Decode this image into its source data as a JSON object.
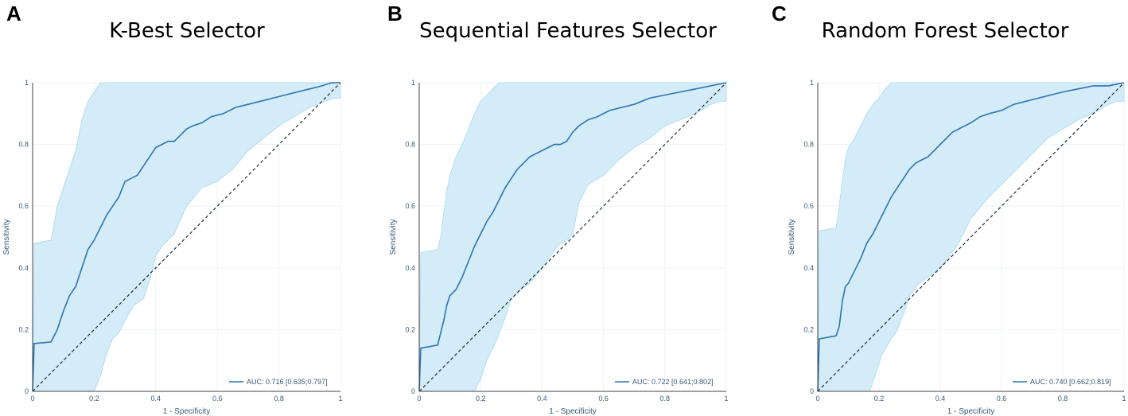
{
  "panels": [
    {
      "letter": "A",
      "title": "K-Best Selector"
    },
    {
      "letter": "B",
      "title": "Sequential Features Selector"
    },
    {
      "letter": "C",
      "title": "Random Forest Selector"
    }
  ],
  "colors": {
    "line": "#2d74b0",
    "band": "#d3ecf8",
    "band_edge": "#a9d8f0",
    "diag": "#1a2b3c",
    "text": "#3a5a7a",
    "grid": "#eef3f6"
  },
  "chart_data": [
    {
      "type": "line",
      "title": "K-Best Selector",
      "xlabel": "1 - Specificity",
      "ylabel": "Sensitivity",
      "xlim": [
        0,
        1
      ],
      "ylim": [
        0,
        1
      ],
      "xticks": [
        "0",
        "0.2",
        "0.4",
        "0.6",
        "0.8",
        "1"
      ],
      "yticks": [
        "0",
        "0.2",
        "0.4",
        "0.6",
        "0.8",
        "1"
      ],
      "legend": "bottom-right",
      "series": [
        {
          "name": "AUC: 0.716 [0.635;0.797]",
          "role": "roc",
          "x": [
            0,
            0.005,
            0.06,
            0.08,
            0.1,
            0.12,
            0.14,
            0.16,
            0.18,
            0.2,
            0.22,
            0.24,
            0.26,
            0.28,
            0.3,
            0.32,
            0.34,
            0.36,
            0.38,
            0.4,
            0.42,
            0.44,
            0.46,
            0.48,
            0.5,
            0.52,
            0.55,
            0.58,
            0.62,
            0.66,
            0.7,
            0.74,
            0.78,
            0.82,
            0.86,
            0.9,
            0.94,
            0.97,
            1
          ],
          "y": [
            0,
            0.155,
            0.16,
            0.2,
            0.26,
            0.31,
            0.34,
            0.4,
            0.46,
            0.49,
            0.53,
            0.57,
            0.6,
            0.63,
            0.68,
            0.69,
            0.7,
            0.73,
            0.76,
            0.79,
            0.8,
            0.81,
            0.81,
            0.83,
            0.85,
            0.86,
            0.87,
            0.89,
            0.9,
            0.92,
            0.93,
            0.94,
            0.95,
            0.96,
            0.97,
            0.98,
            0.99,
            1.0,
            1.0
          ]
        },
        {
          "role": "upper",
          "x": [
            0,
            0.005,
            0.06,
            0.08,
            0.1,
            0.12,
            0.14,
            0.16,
            0.18,
            0.2,
            0.22,
            0.24,
            0.26,
            0.28,
            0.3,
            0.35,
            1
          ],
          "y": [
            0,
            0.48,
            0.49,
            0.6,
            0.66,
            0.72,
            0.78,
            0.88,
            0.94,
            0.97,
            1.0,
            1.0,
            1.0,
            1.0,
            1.0,
            1.0,
            1.0
          ]
        },
        {
          "role": "lower",
          "x": [
            0,
            0.2,
            0.22,
            0.24,
            0.26,
            0.28,
            0.3,
            0.33,
            0.36,
            0.38,
            0.4,
            0.42,
            0.44,
            0.46,
            0.5,
            0.55,
            0.6,
            0.65,
            0.7,
            0.75,
            0.8,
            0.85,
            0.9,
            0.95,
            0.98,
            1
          ],
          "y": [
            0,
            0,
            0.05,
            0.12,
            0.17,
            0.19,
            0.23,
            0.28,
            0.3,
            0.36,
            0.44,
            0.47,
            0.49,
            0.51,
            0.6,
            0.66,
            0.68,
            0.72,
            0.78,
            0.82,
            0.86,
            0.89,
            0.92,
            0.94,
            0.95,
            0.95
          ]
        },
        {
          "role": "chance",
          "x": [
            0,
            1
          ],
          "y": [
            0,
            1
          ]
        }
      ]
    },
    {
      "type": "line",
      "title": "Sequential Features Selector",
      "xlabel": "1 - Specificity",
      "ylabel": "Sensitivity",
      "xlim": [
        0,
        1
      ],
      "ylim": [
        0,
        1
      ],
      "xticks": [
        "0",
        "0.2",
        "0.4",
        "0.6",
        "0.8",
        "1"
      ],
      "yticks": [
        "0",
        "0.2",
        "0.4",
        "0.6",
        "0.8",
        "1"
      ],
      "legend": "bottom-right",
      "series": [
        {
          "name": "AUC: 0.722 [0.641;0.802]",
          "role": "roc",
          "x": [
            0,
            0.005,
            0.06,
            0.08,
            0.09,
            0.1,
            0.12,
            0.14,
            0.16,
            0.18,
            0.2,
            0.22,
            0.24,
            0.26,
            0.28,
            0.3,
            0.32,
            0.34,
            0.36,
            0.38,
            0.4,
            0.42,
            0.44,
            0.46,
            0.48,
            0.5,
            0.52,
            0.55,
            0.58,
            0.62,
            0.66,
            0.7,
            0.75,
            0.8,
            0.85,
            0.9,
            0.95,
            1
          ],
          "y": [
            0,
            0.14,
            0.15,
            0.23,
            0.28,
            0.31,
            0.33,
            0.37,
            0.42,
            0.47,
            0.51,
            0.55,
            0.58,
            0.62,
            0.66,
            0.69,
            0.72,
            0.74,
            0.76,
            0.77,
            0.78,
            0.79,
            0.8,
            0.8,
            0.81,
            0.84,
            0.86,
            0.88,
            0.89,
            0.91,
            0.92,
            0.93,
            0.95,
            0.96,
            0.97,
            0.98,
            0.99,
            1.0
          ]
        },
        {
          "role": "upper",
          "x": [
            0,
            0.005,
            0.06,
            0.07,
            0.08,
            0.09,
            0.1,
            0.12,
            0.14,
            0.16,
            0.18,
            0.2,
            0.22,
            0.24,
            0.26,
            0.28,
            0.3,
            1
          ],
          "y": [
            0,
            0.45,
            0.46,
            0.5,
            0.58,
            0.65,
            0.7,
            0.76,
            0.8,
            0.85,
            0.9,
            0.94,
            0.96,
            0.98,
            1.0,
            1.0,
            1.0,
            1.0
          ]
        },
        {
          "role": "lower",
          "x": [
            0,
            0.18,
            0.2,
            0.22,
            0.25,
            0.28,
            0.3,
            0.33,
            0.36,
            0.4,
            0.45,
            0.48,
            0.5,
            0.52,
            0.55,
            0.6,
            0.65,
            0.7,
            0.75,
            0.8,
            0.85,
            0.9,
            0.95,
            0.98,
            1
          ],
          "y": [
            0,
            0,
            0.04,
            0.1,
            0.16,
            0.24,
            0.3,
            0.33,
            0.35,
            0.4,
            0.47,
            0.49,
            0.51,
            0.61,
            0.67,
            0.7,
            0.75,
            0.79,
            0.82,
            0.86,
            0.88,
            0.9,
            0.93,
            0.94,
            0.94
          ]
        },
        {
          "role": "chance",
          "x": [
            0,
            1
          ],
          "y": [
            0,
            1
          ]
        }
      ]
    },
    {
      "type": "line",
      "title": "Random Forest Selector",
      "xlabel": "1 - Specificity",
      "ylabel": "Sensitivity",
      "xlim": [
        0,
        1
      ],
      "ylim": [
        0,
        1
      ],
      "xticks": [
        "0",
        "0.2",
        "0.4",
        "0.6",
        "0.8",
        "1"
      ],
      "yticks": [
        "0",
        "0.2",
        "0.4",
        "0.6",
        "0.8",
        "1"
      ],
      "legend": "bottom-right",
      "series": [
        {
          "name": "AUC: 0.740 [0.662;0.819]",
          "role": "roc",
          "x": [
            0,
            0.005,
            0.06,
            0.07,
            0.08,
            0.09,
            0.1,
            0.12,
            0.14,
            0.16,
            0.18,
            0.2,
            0.22,
            0.24,
            0.26,
            0.28,
            0.3,
            0.32,
            0.34,
            0.36,
            0.38,
            0.4,
            0.42,
            0.44,
            0.46,
            0.48,
            0.5,
            0.53,
            0.56,
            0.6,
            0.64,
            0.68,
            0.72,
            0.76,
            0.8,
            0.85,
            0.9,
            0.95,
            1
          ],
          "y": [
            0,
            0.17,
            0.18,
            0.21,
            0.29,
            0.34,
            0.35,
            0.39,
            0.43,
            0.48,
            0.51,
            0.55,
            0.59,
            0.63,
            0.66,
            0.69,
            0.72,
            0.74,
            0.75,
            0.76,
            0.78,
            0.8,
            0.82,
            0.84,
            0.85,
            0.86,
            0.87,
            0.89,
            0.9,
            0.91,
            0.93,
            0.94,
            0.95,
            0.96,
            0.97,
            0.98,
            0.99,
            0.99,
            1.0
          ]
        },
        {
          "role": "upper",
          "x": [
            0,
            0.005,
            0.06,
            0.07,
            0.08,
            0.09,
            0.1,
            0.12,
            0.14,
            0.16,
            0.18,
            0.2,
            0.22,
            0.24,
            0.26,
            1
          ],
          "y": [
            0,
            0.52,
            0.53,
            0.6,
            0.68,
            0.75,
            0.79,
            0.82,
            0.86,
            0.9,
            0.93,
            0.95,
            0.98,
            1.0,
            1.0,
            1.0
          ]
        },
        {
          "role": "lower",
          "x": [
            0,
            0.17,
            0.19,
            0.21,
            0.24,
            0.26,
            0.28,
            0.3,
            0.33,
            0.36,
            0.4,
            0.43,
            0.46,
            0.5,
            0.55,
            0.6,
            0.65,
            0.7,
            0.75,
            0.8,
            0.85,
            0.9,
            0.95,
            0.98,
            1
          ],
          "y": [
            0,
            0,
            0.06,
            0.12,
            0.17,
            0.2,
            0.25,
            0.31,
            0.35,
            0.37,
            0.4,
            0.44,
            0.48,
            0.56,
            0.62,
            0.67,
            0.72,
            0.77,
            0.82,
            0.85,
            0.88,
            0.9,
            0.93,
            0.94,
            0.94
          ]
        },
        {
          "role": "chance",
          "x": [
            0,
            1
          ],
          "y": [
            0,
            1
          ]
        }
      ]
    }
  ]
}
